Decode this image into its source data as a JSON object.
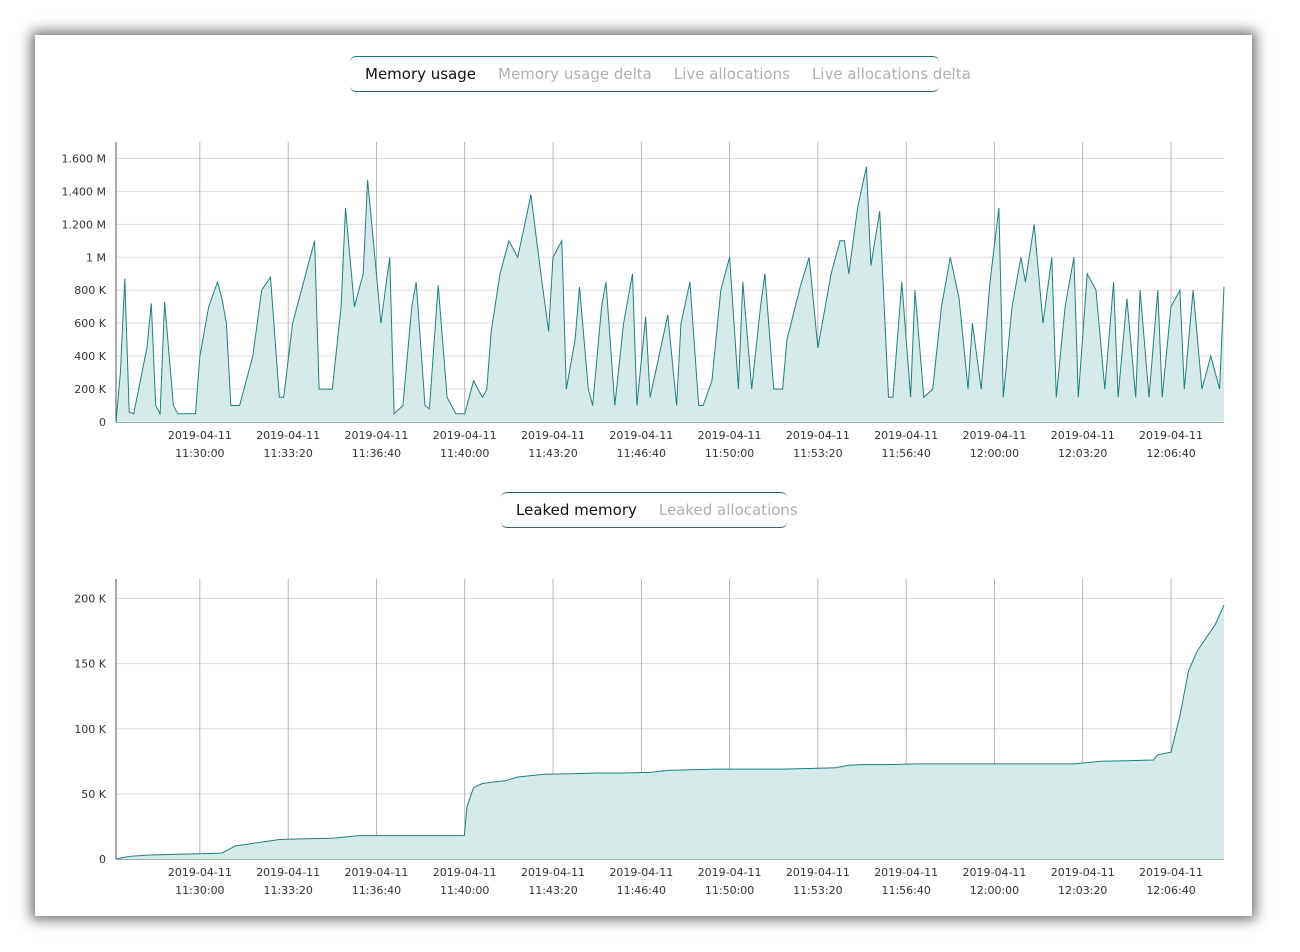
{
  "tabs_top": [
    {
      "label": "Memory usage",
      "active": true
    },
    {
      "label": "Memory usage delta",
      "active": false
    },
    {
      "label": "Live allocations",
      "active": false
    },
    {
      "label": "Live allocations delta",
      "active": false
    }
  ],
  "tabs_bottom": [
    {
      "label": "Leaked memory",
      "active": true
    },
    {
      "label": "Leaked allocations",
      "active": false
    }
  ],
  "colors": {
    "line": "#1f8080",
    "fill": "#d6ebe9",
    "grid": "#dddddd",
    "vgrid": "#999999"
  },
  "chart_data": [
    {
      "type": "area",
      "title": "",
      "xlabel": "",
      "ylabel": "",
      "x_ticks": [
        "2019-04-11 11:30:00",
        "2019-04-11 11:33:20",
        "2019-04-11 11:36:40",
        "2019-04-11 11:40:00",
        "2019-04-11 11:43:20",
        "2019-04-11 11:46:40",
        "2019-04-11 11:50:00",
        "2019-04-11 11:53:20",
        "2019-04-11 11:56:40",
        "2019-04-11 12:00:00",
        "2019-04-11 12:03:20",
        "2019-04-11 12:06:40"
      ],
      "y_ticks": [
        0,
        200000,
        400000,
        600000,
        800000,
        1000000,
        1200000,
        1400000,
        1600000
      ],
      "y_tick_labels": [
        "0",
        "200 K",
        "400 K",
        "600 K",
        "800 K",
        "1 M",
        "1.200 M",
        "1.400 M",
        "1.600 M"
      ],
      "xlim": [
        "2019-04-11 11:26:50",
        "2019-04-11 12:08:40"
      ],
      "ylim": [
        0,
        1700000
      ],
      "grid": true,
      "series": [
        {
          "x": [
            "11:26:50",
            "11:27:00",
            "11:27:10",
            "11:27:20",
            "11:27:30",
            "11:28:00",
            "11:28:10",
            "11:28:20",
            "11:28:30",
            "11:28:40",
            "11:29:00",
            "11:29:10",
            "11:29:20",
            "11:29:30",
            "11:29:50",
            "11:30:00",
            "11:30:20",
            "11:30:40",
            "11:30:50",
            "11:31:00",
            "11:31:10",
            "11:31:30",
            "11:32:00",
            "11:32:20",
            "11:32:40",
            "11:33:00",
            "11:33:10",
            "11:33:30",
            "11:34:00",
            "11:34:20",
            "11:34:30",
            "11:35:00",
            "11:35:20",
            "11:35:30",
            "11:35:50",
            "11:36:10",
            "11:36:20",
            "11:36:40",
            "11:36:50",
            "11:37:10",
            "11:37:20",
            "11:37:40",
            "11:38:00",
            "11:38:10",
            "11:38:30",
            "11:38:40",
            "11:39:00",
            "11:39:20",
            "11:39:40",
            "11:40:00",
            "11:40:20",
            "11:40:40",
            "11:40:50",
            "11:41:00",
            "11:41:20",
            "11:41:40",
            "11:42:00",
            "11:42:20",
            "11:42:30",
            "11:42:50",
            "11:43:10",
            "11:43:20",
            "11:43:40",
            "11:43:50",
            "11:44:10",
            "11:44:20",
            "11:44:40",
            "11:44:50",
            "11:45:10",
            "11:45:20",
            "11:45:40",
            "11:46:00",
            "11:46:20",
            "11:46:30",
            "11:46:50",
            "11:47:00",
            "11:47:20",
            "11:47:40",
            "11:48:00",
            "11:48:10",
            "11:48:30",
            "11:48:50",
            "11:49:00",
            "11:49:20",
            "11:49:40",
            "11:50:00",
            "11:50:20",
            "11:50:30",
            "11:50:50",
            "11:51:10",
            "11:51:20",
            "11:51:40",
            "11:52:00",
            "11:52:10",
            "11:52:40",
            "11:53:00",
            "11:53:20",
            "11:53:50",
            "11:54:10",
            "11:54:20",
            "11:54:30",
            "11:54:50",
            "11:55:10",
            "11:55:20",
            "11:55:40",
            "11:56:00",
            "11:56:10",
            "11:56:30",
            "11:56:50",
            "11:57:00",
            "11:57:20",
            "11:57:40",
            "11:58:00",
            "11:58:20",
            "11:58:40",
            "11:59:00",
            "11:59:10",
            "11:59:30",
            "11:59:50",
            "12:00:10",
            "12:00:20",
            "12:00:40",
            "12:01:00",
            "12:01:10",
            "12:01:30",
            "12:01:50",
            "12:02:10",
            "12:02:20",
            "12:02:40",
            "12:03:00",
            "12:03:10",
            "12:03:30",
            "12:03:50",
            "12:04:10",
            "12:04:30",
            "12:04:40",
            "12:05:00",
            "12:05:20",
            "12:05:30",
            "12:05:50",
            "12:06:10",
            "12:06:20",
            "12:06:40",
            "12:07:00",
            "12:07:10",
            "12:07:30",
            "12:07:50",
            "12:08:10",
            "12:08:30",
            "12:08:40"
          ],
          "values": [
            0,
            300000,
            870000,
            60000,
            50000,
            450000,
            720000,
            100000,
            50000,
            730000,
            100000,
            50000,
            50000,
            50000,
            50000,
            400000,
            700000,
            850000,
            750000,
            600000,
            100000,
            100000,
            400000,
            800000,
            880000,
            150000,
            150000,
            600000,
            900000,
            1100000,
            200000,
            200000,
            700000,
            1300000,
            700000,
            900000,
            1470000,
            900000,
            600000,
            1000000,
            50000,
            100000,
            700000,
            850000,
            100000,
            80000,
            830000,
            150000,
            50000,
            50000,
            250000,
            150000,
            200000,
            550000,
            900000,
            1100000,
            1000000,
            1250000,
            1380000,
            950000,
            550000,
            1000000,
            1100000,
            200000,
            500000,
            820000,
            200000,
            100000,
            700000,
            850000,
            100000,
            600000,
            900000,
            100000,
            640000,
            150000,
            400000,
            650000,
            100000,
            600000,
            850000,
            100000,
            100000,
            250000,
            800000,
            1000000,
            200000,
            850000,
            200000,
            700000,
            900000,
            200000,
            200000,
            500000,
            820000,
            1000000,
            450000,
            900000,
            1100000,
            1100000,
            900000,
            1300000,
            1550000,
            950000,
            1280000,
            150000,
            150000,
            850000,
            150000,
            800000,
            150000,
            200000,
            700000,
            1000000,
            750000,
            200000,
            600000,
            200000,
            850000,
            1300000,
            150000,
            700000,
            1000000,
            850000,
            1200000,
            600000,
            1000000,
            150000,
            700000,
            1000000,
            150000,
            900000,
            800000,
            200000,
            850000,
            150000,
            750000,
            150000,
            800000,
            150000,
            800000,
            150000,
            700000,
            800000,
            200000,
            800000,
            200000,
            400000,
            200000,
            820000
          ]
        }
      ]
    },
    {
      "type": "area",
      "title": "",
      "xlabel": "",
      "ylabel": "",
      "x_ticks": [
        "2019-04-11 11:30:00",
        "2019-04-11 11:33:20",
        "2019-04-11 11:36:40",
        "2019-04-11 11:40:00",
        "2019-04-11 11:43:20",
        "2019-04-11 11:46:40",
        "2019-04-11 11:50:00",
        "2019-04-11 11:53:20",
        "2019-04-11 11:56:40",
        "2019-04-11 12:00:00",
        "2019-04-11 12:03:20",
        "2019-04-11 12:06:40"
      ],
      "y_ticks": [
        0,
        50000,
        100000,
        150000,
        200000
      ],
      "y_tick_labels": [
        "0",
        "50 K",
        "100 K",
        "150 K",
        "200 K"
      ],
      "xlim": [
        "2019-04-11 11:26:50",
        "2019-04-11 12:08:40"
      ],
      "ylim": [
        0,
        215000
      ],
      "grid": true,
      "series": [
        {
          "x": [
            "11:26:50",
            "11:27:20",
            "11:28:00",
            "11:29:00",
            "11:30:00",
            "11:30:50",
            "11:31:20",
            "11:32:00",
            "11:33:00",
            "11:34:00",
            "11:35:00",
            "11:36:00",
            "11:37:00",
            "11:38:00",
            "11:39:00",
            "11:39:59",
            "11:40:05",
            "11:40:20",
            "11:40:40",
            "11:41:00",
            "11:41:30",
            "11:42:00",
            "11:43:00",
            "11:44:00",
            "11:45:00",
            "11:46:00",
            "11:47:00",
            "11:47:40",
            "11:48:30",
            "11:49:30",
            "11:50:00",
            "11:51:00",
            "11:52:00",
            "11:53:00",
            "11:54:00",
            "11:54:30",
            "11:55:00",
            "11:56:00",
            "11:57:00",
            "11:58:00",
            "11:59:00",
            "12:00:00",
            "12:01:00",
            "12:02:00",
            "12:03:00",
            "12:03:30",
            "12:04:00",
            "12:05:00",
            "12:06:00",
            "12:06:10",
            "12:06:40",
            "12:07:00",
            "12:07:20",
            "12:07:40",
            "12:08:00",
            "12:08:20",
            "12:08:40"
          ],
          "values": [
            0,
            2000,
            3000,
            3500,
            4000,
            4500,
            10000,
            12000,
            15000,
            15500,
            16000,
            18000,
            18000,
            18000,
            18000,
            18000,
            40000,
            55000,
            58000,
            59000,
            60000,
            63000,
            65000,
            65500,
            66000,
            66000,
            66500,
            68000,
            68500,
            69000,
            69000,
            69000,
            69000,
            69500,
            70000,
            72000,
            72500,
            72500,
            73000,
            73000,
            73000,
            73000,
            73000,
            73000,
            73000,
            74000,
            75000,
            75500,
            76000,
            80000,
            82000,
            110000,
            145000,
            160000,
            170000,
            180000,
            195000
          ]
        }
      ]
    }
  ]
}
